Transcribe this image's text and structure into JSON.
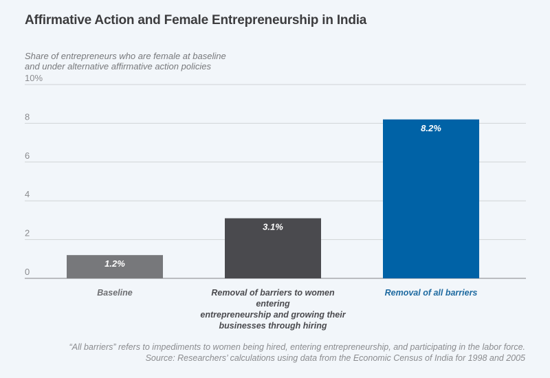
{
  "chart_data": {
    "type": "bar",
    "title": "Affirmative Action and Female Entrepreneurship in India",
    "ylabel_lines": [
      "Share of entrepreneurs who are female at baseline",
      "and under alternative affirmative action policies"
    ],
    "xlabel": "",
    "ylim": [
      0,
      10
    ],
    "yticks": [
      0,
      2,
      4,
      6,
      8,
      10
    ],
    "ytick_labels": [
      "0",
      "2",
      "4",
      "6",
      "8",
      "10%"
    ],
    "grid": true,
    "categories": [
      "Baseline",
      "Removal of barriers to women entering entrepreneurship and growing their businesses through hiring",
      "Removal of all barriers"
    ],
    "category_label_lines": [
      [
        "Baseline"
      ],
      [
        "Removal of barriers to women entering",
        "entrepreneurship and growing their",
        "businesses through hiring"
      ],
      [
        "Removal of all barriers"
      ]
    ],
    "values": [
      1.2,
      3.1,
      8.2
    ],
    "data_labels": [
      "1.2%",
      "3.1%",
      "8.2%"
    ],
    "bar_colors": [
      "#77787b",
      "#4a4a4e",
      "#0062a6"
    ],
    "category_label_colors": [
      "#6d6e71",
      "#4a4a4e",
      "#1e6aa0"
    ],
    "notes": [
      "“All barriers” refers to impediments to women being hired, entering entrepreneurship, and participating in the labor force.",
      "Source: Researchers’ calculations using data from the Economic Census of India for 1998 and 2005"
    ]
  }
}
